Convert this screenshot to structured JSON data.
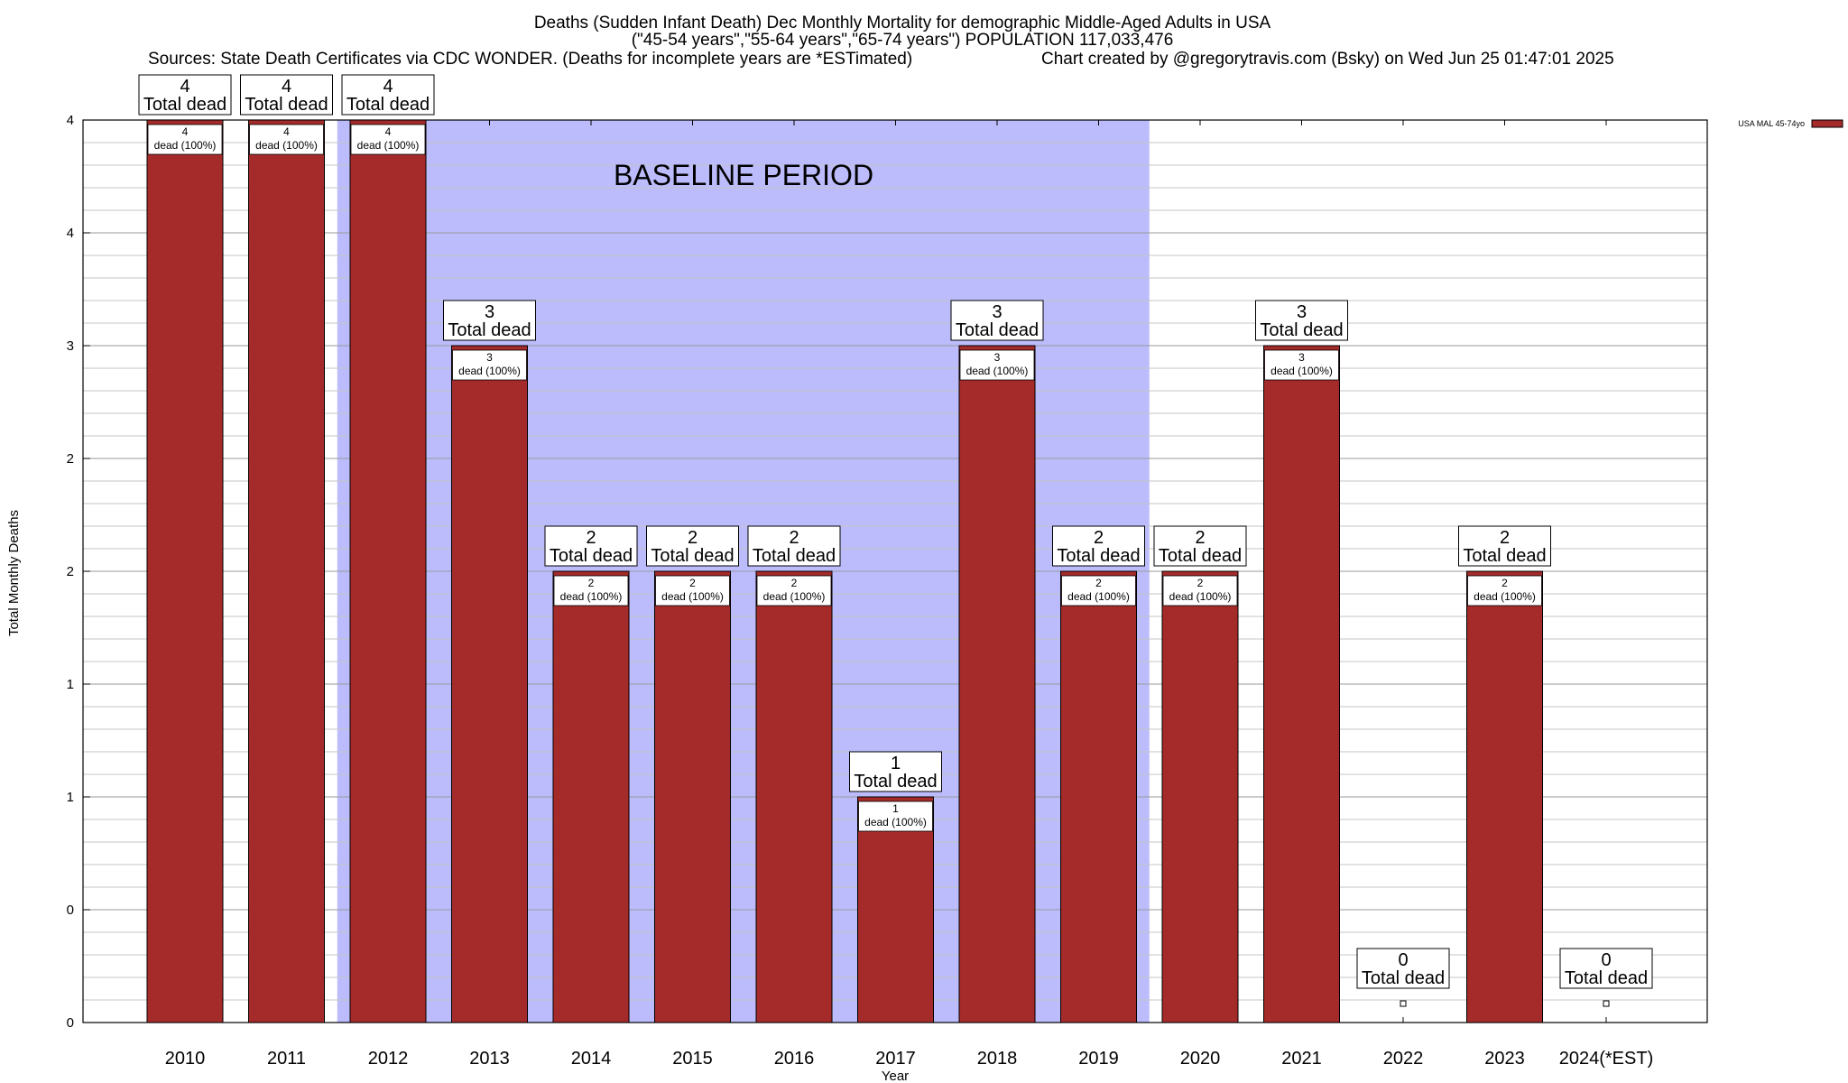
{
  "chart_data": {
    "type": "bar",
    "title_lines": [
      "Deaths (Sudden Infant Death) Dec Monthly Mortality for demographic Middle-Aged Adults in USA",
      "(\"45-54 years\",\"55-64 years\",\"65-74 years\") POPULATION 117,033,476"
    ],
    "sources_text": "Sources: State Death Certificates via CDC WONDER. (Deaths for incomplete years are *ESTimated)",
    "credit_text": "Chart created by @gregorytravis.com (Bsky) on Wed Jun 25 01:47:01 2025",
    "xlabel": "Year",
    "ylabel": "Total Monthly Deaths",
    "categories": [
      "2010",
      "2011",
      "2012",
      "2013",
      "2014",
      "2015",
      "2016",
      "2017",
      "2018",
      "2019",
      "2020",
      "2021",
      "2022",
      "2023",
      "2024(*EST)"
    ],
    "series": [
      {
        "name": "USA MAL 45-74yo",
        "color": "#a52a2a",
        "values": [
          4,
          4,
          4,
          3,
          2,
          2,
          2,
          1,
          3,
          2,
          2,
          3,
          0,
          2,
          0
        ]
      }
    ],
    "total_box_top": [
      "4",
      "4",
      "4",
      "3",
      "2",
      "2",
      "2",
      "1",
      "3",
      "2",
      "2",
      "3",
      "0",
      "2",
      "0"
    ],
    "total_box_bottom": "Total dead",
    "inner_label_top": [
      "4",
      "4",
      "4",
      "3",
      "2",
      "2",
      "2",
      "1",
      "3",
      "2",
      "2",
      "3",
      "",
      "2",
      ""
    ],
    "inner_label_bottom": "dead (100%)",
    "ylim": [
      0,
      4
    ],
    "yticks": [
      0,
      0.5,
      1,
      1.5,
      2,
      2.5,
      3,
      3.5,
      4
    ],
    "ytick_labels": [
      "0",
      "0",
      "1",
      "1",
      "2",
      "2",
      "3",
      "4",
      "4"
    ],
    "baseline_period": {
      "label": "BASELINE PERIOD",
      "start": "2012",
      "end": "2019",
      "color": "#bcbcfc"
    },
    "grid": true,
    "legend_position": "top-right"
  }
}
